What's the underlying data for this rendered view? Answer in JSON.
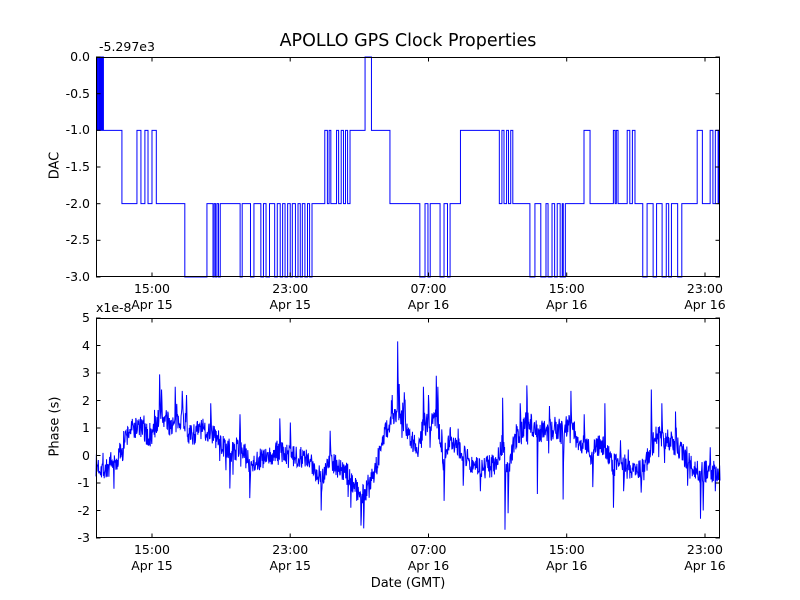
{
  "figure": {
    "title": "APOLLO GPS Clock Properties",
    "xlabel": "Date (GMT)",
    "background_color": "#ffffff",
    "frame_color": "#000000",
    "line_color": "#0000ff"
  },
  "chart_data": [
    {
      "id": "dac",
      "type": "line",
      "subtype": "step",
      "title": "APOLLO GPS Clock Properties",
      "ylabel": "DAC",
      "y_offset_text": "-5.297e3",
      "x_unit": "hours since Apr 15 00:00 GMT",
      "xlim": [
        11.76,
        47.87
      ],
      "ylim": [
        -3.0,
        0.0
      ],
      "grid": false,
      "legend": null,
      "ytick_labels": [
        "0.0",
        "-0.5",
        "-1.0",
        "-1.5",
        "-2.0",
        "-2.5",
        "-3.0"
      ],
      "ytick_values": [
        0,
        -0.5,
        -1,
        -1.5,
        -2,
        -2.5,
        -3
      ],
      "xticks": [
        {
          "value": 15,
          "line1": "15:00",
          "line2": "Apr 15"
        },
        {
          "value": 23,
          "line1": "23:00",
          "line2": "Apr 15"
        },
        {
          "value": 31,
          "line1": "07:00",
          "line2": "Apr 16"
        },
        {
          "value": 39,
          "line1": "15:00",
          "line2": "Apr 16"
        },
        {
          "value": 47,
          "line1": "23:00",
          "line2": "Apr 16"
        }
      ],
      "step_points": [
        [
          11.76,
          0
        ],
        [
          11.8,
          -1
        ],
        [
          11.85,
          0
        ],
        [
          11.9,
          -1
        ],
        [
          11.96,
          0
        ],
        [
          12.01,
          -1
        ],
        [
          12.06,
          0
        ],
        [
          12.1,
          -1
        ],
        [
          12.15,
          0
        ],
        [
          12.19,
          -1
        ],
        [
          13.26,
          -2
        ],
        [
          14.13,
          -1
        ],
        [
          14.36,
          -2
        ],
        [
          14.59,
          -1
        ],
        [
          14.77,
          -2
        ],
        [
          15.0,
          -1
        ],
        [
          15.25,
          -2
        ],
        [
          16.9,
          -3
        ],
        [
          18.18,
          -2
        ],
        [
          18.53,
          -3
        ],
        [
          18.6,
          -2
        ],
        [
          18.68,
          -3
        ],
        [
          18.76,
          -2
        ],
        [
          18.85,
          -3
        ],
        [
          18.95,
          -2
        ],
        [
          20.1,
          -3
        ],
        [
          20.22,
          -2
        ],
        [
          20.7,
          -3
        ],
        [
          20.9,
          -2
        ],
        [
          21.3,
          -3
        ],
        [
          21.45,
          -2
        ],
        [
          21.6,
          -3
        ],
        [
          21.8,
          -2
        ],
        [
          22.1,
          -3
        ],
        [
          22.25,
          -2
        ],
        [
          22.42,
          -3
        ],
        [
          22.56,
          -2
        ],
        [
          22.7,
          -3
        ],
        [
          22.85,
          -2
        ],
        [
          23.0,
          -3
        ],
        [
          23.12,
          -2
        ],
        [
          23.3,
          -3
        ],
        [
          23.45,
          -2
        ],
        [
          23.58,
          -3
        ],
        [
          23.7,
          -2
        ],
        [
          23.85,
          -3
        ],
        [
          24.0,
          -2
        ],
        [
          24.12,
          -3
        ],
        [
          24.26,
          -2
        ],
        [
          25.0,
          -1
        ],
        [
          25.15,
          -2
        ],
        [
          25.25,
          -1
        ],
        [
          25.35,
          -2
        ],
        [
          25.68,
          -1
        ],
        [
          25.8,
          -2
        ],
        [
          25.95,
          -1
        ],
        [
          26.08,
          -2
        ],
        [
          26.2,
          -1
        ],
        [
          26.32,
          -2
        ],
        [
          26.46,
          -1
        ],
        [
          27.33,
          0
        ],
        [
          27.7,
          -1
        ],
        [
          28.77,
          -2
        ],
        [
          30.5,
          -3
        ],
        [
          30.8,
          -2
        ],
        [
          30.97,
          -3
        ],
        [
          31.1,
          -2
        ],
        [
          31.67,
          -3
        ],
        [
          31.9,
          -2
        ],
        [
          32.1,
          -3
        ],
        [
          32.25,
          -2
        ],
        [
          32.85,
          -1
        ],
        [
          35.1,
          -2
        ],
        [
          35.25,
          -1
        ],
        [
          35.37,
          -2
        ],
        [
          35.52,
          -1
        ],
        [
          35.63,
          -2
        ],
        [
          35.76,
          -1
        ],
        [
          35.88,
          -2
        ],
        [
          36.87,
          -3
        ],
        [
          37.16,
          -2
        ],
        [
          37.5,
          -3
        ],
        [
          37.8,
          -2
        ],
        [
          37.92,
          -3
        ],
        [
          38.15,
          -2
        ],
        [
          38.3,
          -3
        ],
        [
          38.45,
          -2
        ],
        [
          38.62,
          -3
        ],
        [
          38.74,
          -2
        ],
        [
          38.8,
          -3
        ],
        [
          38.92,
          -2
        ],
        [
          40.0,
          -1
        ],
        [
          40.35,
          -2
        ],
        [
          41.7,
          -1
        ],
        [
          41.8,
          -2
        ],
        [
          41.87,
          -1
        ],
        [
          41.97,
          -2
        ],
        [
          42.5,
          -1
        ],
        [
          42.65,
          -2
        ],
        [
          42.8,
          -1
        ],
        [
          42.95,
          -2
        ],
        [
          43.4,
          -3
        ],
        [
          43.65,
          -2
        ],
        [
          44.0,
          -3
        ],
        [
          44.2,
          -2
        ],
        [
          44.52,
          -3
        ],
        [
          44.76,
          -2
        ],
        [
          44.9,
          -3
        ],
        [
          45.06,
          -2
        ],
        [
          45.42,
          -3
        ],
        [
          45.66,
          -2
        ],
        [
          46.55,
          -1
        ],
        [
          46.85,
          -2
        ],
        [
          47.3,
          -1
        ],
        [
          47.46,
          -2
        ],
        [
          47.6,
          -1
        ],
        [
          47.76,
          -2
        ],
        [
          47.8,
          -1
        ]
      ]
    },
    {
      "id": "phase",
      "type": "line",
      "subtype": "noisy",
      "ylabel": "Phase (s)",
      "y_offset_text": "x1e-8",
      "x_unit": "hours since Apr 15 00:00 GMT",
      "xlim": [
        11.76,
        47.87
      ],
      "ylim": [
        -3,
        5
      ],
      "grid": false,
      "legend": null,
      "ytick_labels": [
        "5",
        "4",
        "3",
        "2",
        "1",
        "0",
        "-1",
        "-2",
        "-3"
      ],
      "ytick_values": [
        5,
        4,
        3,
        2,
        1,
        0,
        -1,
        -2,
        -3
      ],
      "xticks": [
        {
          "value": 15,
          "line1": "15:00",
          "line2": "Apr 15"
        },
        {
          "value": 23,
          "line1": "23:00",
          "line2": "Apr 15"
        },
        {
          "value": 31,
          "line1": "07:00",
          "line2": "Apr 16"
        },
        {
          "value": 39,
          "line1": "15:00",
          "line2": "Apr 16"
        },
        {
          "value": 47,
          "line1": "23:00",
          "line2": "Apr 16"
        }
      ],
      "anchors": [
        [
          11.76,
          -0.35
        ],
        [
          12.3,
          -0.5
        ],
        [
          12.9,
          -0.35
        ],
        [
          13.4,
          0.55
        ],
        [
          13.75,
          0.95
        ],
        [
          14.3,
          1.05
        ],
        [
          14.9,
          0.6
        ],
        [
          15.2,
          1.1
        ],
        [
          15.5,
          1.5
        ],
        [
          15.95,
          1.15
        ],
        [
          16.35,
          1.1
        ],
        [
          16.75,
          1.5
        ],
        [
          17.2,
          0.7
        ],
        [
          17.8,
          0.95
        ],
        [
          18.4,
          0.85
        ],
        [
          18.9,
          0.5
        ],
        [
          19.5,
          0.05
        ],
        [
          20.1,
          0.35
        ],
        [
          20.65,
          -0.3
        ],
        [
          21.25,
          -0.15
        ],
        [
          21.8,
          -0.1
        ],
        [
          22.4,
          0.2
        ],
        [
          23.0,
          -0.1
        ],
        [
          23.6,
          0.0
        ],
        [
          24.15,
          -0.3
        ],
        [
          24.85,
          -0.8
        ],
        [
          25.3,
          -0.1
        ],
        [
          25.9,
          -0.5
        ],
        [
          26.5,
          -0.8
        ],
        [
          26.9,
          -1.3
        ],
        [
          27.2,
          -1.5
        ],
        [
          27.6,
          -0.9
        ],
        [
          28.0,
          -0.35
        ],
        [
          28.5,
          0.9
        ],
        [
          28.9,
          1.25
        ],
        [
          29.25,
          1.5
        ],
        [
          29.65,
          1.2
        ],
        [
          30.05,
          0.55
        ],
        [
          30.4,
          0.3
        ],
        [
          30.75,
          1.15
        ],
        [
          31.1,
          1.1
        ],
        [
          31.5,
          1.4
        ],
        [
          31.85,
          -0.2
        ],
        [
          32.25,
          0.65
        ],
        [
          32.7,
          0.4
        ],
        [
          33.1,
          0.0
        ],
        [
          33.5,
          -0.3
        ],
        [
          34.0,
          -0.45
        ],
        [
          34.45,
          -0.4
        ],
        [
          34.85,
          -0.35
        ],
        [
          35.25,
          0.4
        ],
        [
          35.6,
          -0.6
        ],
        [
          35.95,
          0.45
        ],
        [
          36.3,
          0.85
        ],
        [
          36.7,
          1.25
        ],
        [
          37.05,
          1.05
        ],
        [
          37.45,
          0.9
        ],
        [
          37.9,
          0.9
        ],
        [
          38.3,
          1.0
        ],
        [
          38.8,
          0.95
        ],
        [
          39.25,
          1.25
        ],
        [
          39.65,
          0.45
        ],
        [
          40.05,
          0.4
        ],
        [
          40.45,
          0.1
        ],
        [
          40.8,
          0.4
        ],
        [
          41.2,
          0.3
        ],
        [
          41.7,
          -0.35
        ],
        [
          42.1,
          -0.25
        ],
        [
          42.55,
          -0.45
        ],
        [
          43.0,
          -0.55
        ],
        [
          43.5,
          -0.45
        ],
        [
          43.95,
          0.4
        ],
        [
          44.3,
          0.8
        ],
        [
          44.7,
          0.55
        ],
        [
          45.1,
          0.5
        ],
        [
          45.55,
          0.15
        ],
        [
          46.0,
          -0.1
        ],
        [
          46.45,
          -0.5
        ],
        [
          46.85,
          -0.65
        ],
        [
          47.2,
          -0.55
        ],
        [
          47.55,
          -0.6
        ],
        [
          47.87,
          -0.5
        ]
      ],
      "spikes": [
        [
          15.45,
          2.95
        ],
        [
          15.55,
          2.4
        ],
        [
          16.35,
          2.5
        ],
        [
          16.75,
          2.35
        ],
        [
          17.0,
          2.2
        ],
        [
          18.4,
          1.9
        ],
        [
          19.5,
          -1.2
        ],
        [
          20.1,
          1.5
        ],
        [
          20.65,
          -1.55
        ],
        [
          22.4,
          1.35
        ],
        [
          23.0,
          1.2
        ],
        [
          24.8,
          -2.0
        ],
        [
          25.3,
          0.9
        ],
        [
          26.5,
          -1.9
        ],
        [
          27.1,
          -2.55
        ],
        [
          27.25,
          -2.65
        ],
        [
          28.9,
          2.2
        ],
        [
          29.22,
          4.15
        ],
        [
          29.3,
          2.6
        ],
        [
          29.6,
          2.3
        ],
        [
          30.7,
          2.5
        ],
        [
          31.0,
          2.2
        ],
        [
          31.45,
          2.9
        ],
        [
          31.55,
          2.5
        ],
        [
          31.9,
          -1.65
        ],
        [
          33.0,
          -1.1
        ],
        [
          34.0,
          -1.3
        ],
        [
          35.3,
          2.1
        ],
        [
          35.42,
          -2.7
        ],
        [
          35.6,
          -2.1
        ],
        [
          36.3,
          1.9
        ],
        [
          36.7,
          2.55
        ],
        [
          37.3,
          -1.4
        ],
        [
          38.0,
          1.8
        ],
        [
          38.8,
          -1.6
        ],
        [
          39.25,
          2.35
        ],
        [
          40.0,
          1.5
        ],
        [
          40.5,
          -1.15
        ],
        [
          41.2,
          1.9
        ],
        [
          41.7,
          -1.9
        ],
        [
          42.3,
          -1.3
        ],
        [
          43.3,
          -1.35
        ],
        [
          43.9,
          2.4
        ],
        [
          44.5,
          1.9
        ],
        [
          45.3,
          1.6
        ],
        [
          46.0,
          -1.1
        ],
        [
          46.75,
          -2.3
        ],
        [
          46.9,
          -2.0
        ],
        [
          47.3,
          0.3
        ],
        [
          47.6,
          -1.3
        ]
      ],
      "noise": {
        "amplitude": 0.42,
        "burst_amplitude": 0.85,
        "burst_probability": 0.06,
        "seed": 7,
        "samples": 1600
      }
    }
  ]
}
